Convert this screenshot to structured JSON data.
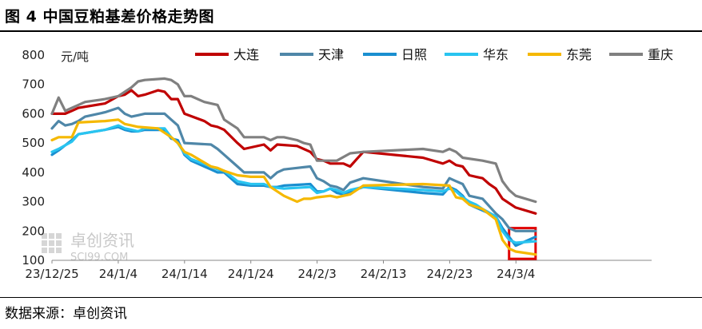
{
  "header": {
    "title": "图 4 中国豆粕基差价格走势图"
  },
  "footer": {
    "source": "数据来源：卓创资讯"
  },
  "watermark": {
    "name": "卓创资讯",
    "site": "SCI99.COM"
  },
  "chart_data": {
    "type": "line",
    "ylabel": "元/吨",
    "ylim": [
      100,
      800
    ],
    "yticks": [
      100,
      200,
      300,
      400,
      500,
      600,
      700,
      800
    ],
    "grid": false,
    "legend_position": "top",
    "xlabels": [
      "23/12/25",
      "24/1/4",
      "24/1/14",
      "24/1/24",
      "24/2/3",
      "24/2/13",
      "24/2/23",
      "24/3/4"
    ],
    "x_start": "2023-12-25",
    "x_end": "2024-03-04",
    "highlight_box": {
      "x_from": "2024-03-03",
      "x_to": "2024-03-07",
      "y_from": 105,
      "y_to": 210,
      "color": "#e00000"
    },
    "series": [
      {
        "name": "大连",
        "color": "#c00000",
        "points": [
          [
            "2023-12-25",
            600
          ],
          [
            "2023-12-27",
            600
          ],
          [
            "2023-12-28",
            610
          ],
          [
            "2023-12-29",
            620
          ],
          [
            "2024-01-02",
            635
          ],
          [
            "2024-01-04",
            660
          ],
          [
            "2024-01-05",
            665
          ],
          [
            "2024-01-06",
            680
          ],
          [
            "2024-01-07",
            660
          ],
          [
            "2024-01-08",
            665
          ],
          [
            "2024-01-10",
            680
          ],
          [
            "2024-01-11",
            675
          ],
          [
            "2024-01-12",
            650
          ],
          [
            "2024-01-13",
            650
          ],
          [
            "2024-01-14",
            600
          ],
          [
            "2024-01-17",
            575
          ],
          [
            "2024-01-18",
            560
          ],
          [
            "2024-01-19",
            555
          ],
          [
            "2024-01-20",
            545
          ],
          [
            "2024-01-22",
            500
          ],
          [
            "2024-01-23",
            480
          ],
          [
            "2024-01-26",
            495
          ],
          [
            "2024-01-27",
            475
          ],
          [
            "2024-01-28",
            495
          ],
          [
            "2024-01-31",
            490
          ],
          [
            "2024-02-02",
            470
          ],
          [
            "2024-02-03",
            445
          ],
          [
            "2024-02-04",
            440
          ],
          [
            "2024-02-05",
            430
          ],
          [
            "2024-02-07",
            430
          ],
          [
            "2024-02-08",
            420
          ],
          [
            "2024-02-09",
            445
          ],
          [
            "2024-02-10",
            470
          ],
          [
            "2024-02-19",
            450
          ],
          [
            "2024-02-22",
            430
          ],
          [
            "2024-02-23",
            440
          ],
          [
            "2024-02-24",
            425
          ],
          [
            "2024-02-25",
            420
          ],
          [
            "2024-02-26",
            390
          ],
          [
            "2024-02-27",
            385
          ],
          [
            "2024-02-28",
            380
          ],
          [
            "2024-02-29",
            360
          ],
          [
            "2024-03-01",
            345
          ],
          [
            "2024-03-02",
            310
          ],
          [
            "2024-03-03",
            295
          ],
          [
            "2024-03-04",
            280
          ],
          [
            "2024-03-07",
            260
          ]
        ]
      },
      {
        "name": "天津",
        "color": "#4f87a8",
        "points": [
          [
            "2023-12-25",
            550
          ],
          [
            "2023-12-26",
            575
          ],
          [
            "2023-12-27",
            560
          ],
          [
            "2023-12-28",
            565
          ],
          [
            "2023-12-29",
            575
          ],
          [
            "2023-12-30",
            590
          ],
          [
            "2024-01-02",
            605
          ],
          [
            "2024-01-04",
            620
          ],
          [
            "2024-01-05",
            600
          ],
          [
            "2024-01-06",
            590
          ],
          [
            "2024-01-07",
            595
          ],
          [
            "2024-01-08",
            600
          ],
          [
            "2024-01-11",
            600
          ],
          [
            "2024-01-12",
            580
          ],
          [
            "2024-01-13",
            560
          ],
          [
            "2024-01-14",
            500
          ],
          [
            "2024-01-18",
            495
          ],
          [
            "2024-01-19",
            480
          ],
          [
            "2024-01-20",
            460
          ],
          [
            "2024-01-22",
            420
          ],
          [
            "2024-01-23",
            400
          ],
          [
            "2024-01-26",
            400
          ],
          [
            "2024-01-27",
            380
          ],
          [
            "2024-01-28",
            400
          ],
          [
            "2024-01-29",
            410
          ],
          [
            "2024-01-31",
            415
          ],
          [
            "2024-02-02",
            420
          ],
          [
            "2024-02-03",
            380
          ],
          [
            "2024-02-04",
            370
          ],
          [
            "2024-02-05",
            355
          ],
          [
            "2024-02-06",
            350
          ],
          [
            "2024-02-07",
            340
          ],
          [
            "2024-02-08",
            365
          ],
          [
            "2024-02-10",
            380
          ],
          [
            "2024-02-19",
            350
          ],
          [
            "2024-02-22",
            345
          ],
          [
            "2024-02-23",
            380
          ],
          [
            "2024-02-24",
            370
          ],
          [
            "2024-02-25",
            360
          ],
          [
            "2024-02-26",
            320
          ],
          [
            "2024-02-28",
            310
          ],
          [
            "2024-03-01",
            260
          ],
          [
            "2024-03-02",
            240
          ],
          [
            "2024-03-03",
            210
          ],
          [
            "2024-03-04",
            200
          ],
          [
            "2024-03-07",
            200
          ]
        ]
      },
      {
        "name": "日照",
        "color": "#1a8fd0",
        "points": [
          [
            "2023-12-25",
            460
          ],
          [
            "2023-12-26",
            475
          ],
          [
            "2023-12-28",
            510
          ],
          [
            "2023-12-29",
            530
          ],
          [
            "2024-01-02",
            545
          ],
          [
            "2024-01-04",
            555
          ],
          [
            "2024-01-05",
            545
          ],
          [
            "2024-01-06",
            540
          ],
          [
            "2024-01-07",
            540
          ],
          [
            "2024-01-08",
            545
          ],
          [
            "2024-01-11",
            545
          ],
          [
            "2024-01-12",
            515
          ],
          [
            "2024-01-13",
            510
          ],
          [
            "2024-01-14",
            460
          ],
          [
            "2024-01-15",
            440
          ],
          [
            "2024-01-18",
            410
          ],
          [
            "2024-01-19",
            400
          ],
          [
            "2024-01-20",
            400
          ],
          [
            "2024-01-22",
            360
          ],
          [
            "2024-01-24",
            355
          ],
          [
            "2024-01-26",
            355
          ],
          [
            "2024-01-27",
            350
          ],
          [
            "2024-01-28",
            350
          ],
          [
            "2024-01-29",
            355
          ],
          [
            "2024-02-02",
            360
          ],
          [
            "2024-02-03",
            335
          ],
          [
            "2024-02-04",
            335
          ],
          [
            "2024-02-05",
            345
          ],
          [
            "2024-02-06",
            330
          ],
          [
            "2024-02-07",
            325
          ],
          [
            "2024-02-08",
            335
          ],
          [
            "2024-02-10",
            350
          ],
          [
            "2024-02-19",
            330
          ],
          [
            "2024-02-22",
            325
          ],
          [
            "2024-02-23",
            350
          ],
          [
            "2024-02-24",
            340
          ],
          [
            "2024-02-25",
            320
          ],
          [
            "2024-02-26",
            290
          ],
          [
            "2024-02-27",
            280
          ],
          [
            "2024-02-28",
            270
          ],
          [
            "2024-03-01",
            250
          ],
          [
            "2024-03-02",
            210
          ],
          [
            "2024-03-03",
            180
          ],
          [
            "2024-03-04",
            150
          ],
          [
            "2024-03-07",
            180
          ]
        ]
      },
      {
        "name": "华东",
        "color": "#29c4f0",
        "points": [
          [
            "2023-12-25",
            470
          ],
          [
            "2023-12-26",
            480
          ],
          [
            "2023-12-28",
            505
          ],
          [
            "2023-12-29",
            530
          ],
          [
            "2024-01-02",
            545
          ],
          [
            "2024-01-04",
            560
          ],
          [
            "2024-01-05",
            550
          ],
          [
            "2024-01-06",
            545
          ],
          [
            "2024-01-07",
            540
          ],
          [
            "2024-01-08",
            550
          ],
          [
            "2024-01-11",
            550
          ],
          [
            "2024-01-12",
            520
          ],
          [
            "2024-01-13",
            500
          ],
          [
            "2024-01-14",
            465
          ],
          [
            "2024-01-15",
            445
          ],
          [
            "2024-01-18",
            420
          ],
          [
            "2024-01-19",
            410
          ],
          [
            "2024-01-20",
            405
          ],
          [
            "2024-01-22",
            370
          ],
          [
            "2024-01-24",
            360
          ],
          [
            "2024-01-26",
            360
          ],
          [
            "2024-01-27",
            350
          ],
          [
            "2024-01-29",
            345
          ],
          [
            "2024-02-02",
            350
          ],
          [
            "2024-02-03",
            330
          ],
          [
            "2024-02-04",
            335
          ],
          [
            "2024-02-05",
            345
          ],
          [
            "2024-02-06",
            340
          ],
          [
            "2024-02-07",
            330
          ],
          [
            "2024-02-08",
            340
          ],
          [
            "2024-02-10",
            350
          ],
          [
            "2024-02-19",
            340
          ],
          [
            "2024-02-22",
            335
          ],
          [
            "2024-02-23",
            345
          ],
          [
            "2024-02-24",
            335
          ],
          [
            "2024-02-25",
            315
          ],
          [
            "2024-02-26",
            300
          ],
          [
            "2024-02-27",
            290
          ],
          [
            "2024-02-28",
            275
          ],
          [
            "2024-03-01",
            250
          ],
          [
            "2024-03-02",
            200
          ],
          [
            "2024-03-03",
            170
          ],
          [
            "2024-03-04",
            160
          ],
          [
            "2024-03-07",
            165
          ]
        ]
      },
      {
        "name": "东莞",
        "color": "#f5b800",
        "points": [
          [
            "2023-12-25",
            510
          ],
          [
            "2023-12-26",
            520
          ],
          [
            "2023-12-28",
            520
          ],
          [
            "2023-12-29",
            570
          ],
          [
            "2024-01-02",
            575
          ],
          [
            "2024-01-04",
            580
          ],
          [
            "2024-01-05",
            565
          ],
          [
            "2024-01-06",
            560
          ],
          [
            "2024-01-07",
            555
          ],
          [
            "2024-01-10",
            550
          ],
          [
            "2024-01-11",
            535
          ],
          [
            "2024-01-12",
            520
          ],
          [
            "2024-01-13",
            500
          ],
          [
            "2024-01-14",
            470
          ],
          [
            "2024-01-15",
            460
          ],
          [
            "2024-01-18",
            420
          ],
          [
            "2024-01-19",
            415
          ],
          [
            "2024-01-20",
            405
          ],
          [
            "2024-01-22",
            390
          ],
          [
            "2024-01-24",
            385
          ],
          [
            "2024-01-26",
            385
          ],
          [
            "2024-01-27",
            350
          ],
          [
            "2024-01-29",
            320
          ],
          [
            "2024-01-30",
            310
          ],
          [
            "2024-01-31",
            300
          ],
          [
            "2024-02-01",
            310
          ],
          [
            "2024-02-02",
            310
          ],
          [
            "2024-02-03",
            315
          ],
          [
            "2024-02-05",
            320
          ],
          [
            "2024-02-06",
            315
          ],
          [
            "2024-02-07",
            320
          ],
          [
            "2024-02-08",
            325
          ],
          [
            "2024-02-10",
            355
          ],
          [
            "2024-02-19",
            360
          ],
          [
            "2024-02-23",
            355
          ],
          [
            "2024-02-24",
            315
          ],
          [
            "2024-02-25",
            310
          ],
          [
            "2024-02-26",
            290
          ],
          [
            "2024-02-28",
            275
          ],
          [
            "2024-03-01",
            240
          ],
          [
            "2024-03-02",
            170
          ],
          [
            "2024-03-03",
            140
          ],
          [
            "2024-03-04",
            130
          ],
          [
            "2024-03-07",
            120
          ]
        ]
      },
      {
        "name": "重庆",
        "color": "#808080",
        "points": [
          [
            "2023-12-25",
            600
          ],
          [
            "2023-12-26",
            655
          ],
          [
            "2023-12-27",
            610
          ],
          [
            "2023-12-28",
            620
          ],
          [
            "2023-12-29",
            630
          ],
          [
            "2023-12-30",
            640
          ],
          [
            "2024-01-02",
            650
          ],
          [
            "2024-01-04",
            660
          ],
          [
            "2024-01-05",
            675
          ],
          [
            "2024-01-06",
            690
          ],
          [
            "2024-01-07",
            710
          ],
          [
            "2024-01-08",
            715
          ],
          [
            "2024-01-11",
            720
          ],
          [
            "2024-01-12",
            715
          ],
          [
            "2024-01-13",
            700
          ],
          [
            "2024-01-14",
            660
          ],
          [
            "2024-01-15",
            660
          ],
          [
            "2024-01-17",
            640
          ],
          [
            "2024-01-19",
            630
          ],
          [
            "2024-01-20",
            580
          ],
          [
            "2024-01-22",
            550
          ],
          [
            "2024-01-23",
            520
          ],
          [
            "2024-01-26",
            520
          ],
          [
            "2024-01-27",
            510
          ],
          [
            "2024-01-28",
            520
          ],
          [
            "2024-01-29",
            520
          ],
          [
            "2024-01-31",
            510
          ],
          [
            "2024-02-01",
            500
          ],
          [
            "2024-02-02",
            495
          ],
          [
            "2024-02-03",
            440
          ],
          [
            "2024-02-04",
            440
          ],
          [
            "2024-02-05",
            440
          ],
          [
            "2024-02-06",
            440
          ],
          [
            "2024-02-08",
            465
          ],
          [
            "2024-02-10",
            470
          ],
          [
            "2024-02-19",
            480
          ],
          [
            "2024-02-22",
            470
          ],
          [
            "2024-02-23",
            480
          ],
          [
            "2024-02-24",
            470
          ],
          [
            "2024-02-25",
            450
          ],
          [
            "2024-02-28",
            440
          ],
          [
            "2024-03-01",
            430
          ],
          [
            "2024-03-02",
            370
          ],
          [
            "2024-03-03",
            340
          ],
          [
            "2024-03-04",
            320
          ],
          [
            "2024-03-07",
            300
          ]
        ]
      }
    ]
  }
}
